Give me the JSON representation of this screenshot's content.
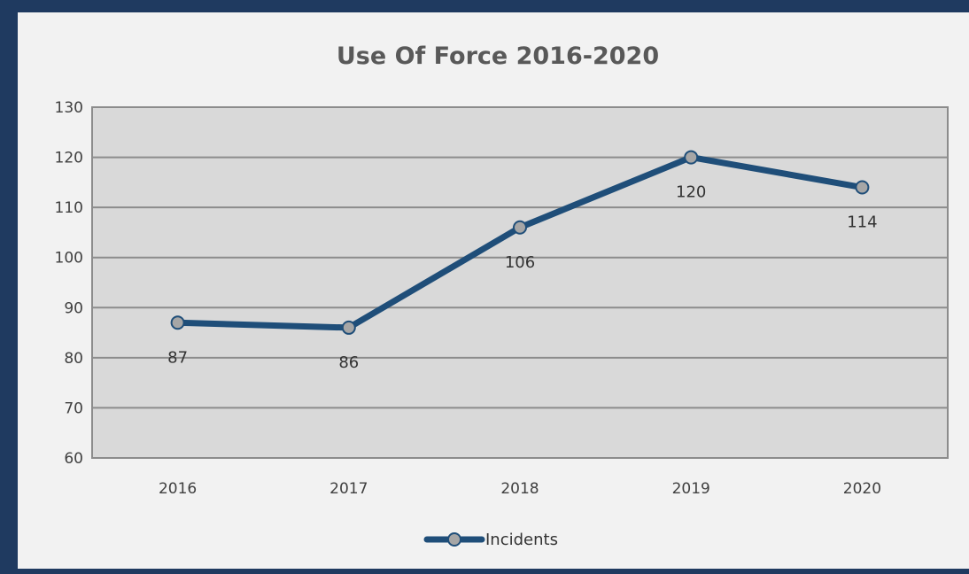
{
  "chart_data": {
    "type": "line",
    "title": "Use Of Force 2016-2020",
    "xlabel": "",
    "ylabel": "",
    "categories": [
      "2016",
      "2017",
      "2018",
      "2019",
      "2020"
    ],
    "series": [
      {
        "name": "Incidents",
        "values": [
          87,
          86,
          106,
          120,
          114
        ]
      }
    ],
    "ylim": [
      60,
      130
    ],
    "yticks": [
      60,
      70,
      80,
      90,
      100,
      110,
      120,
      130
    ],
    "grid": true,
    "legend": "bottom",
    "data_labels": [
      "87",
      "86",
      "106",
      "120",
      "114"
    ]
  },
  "colors": {
    "frame": "#1f3a60",
    "panel": "#f2f2f2",
    "plot_area": "#d9d9d9",
    "gridline": "#8c8c8c",
    "line": "#1f4e79",
    "marker_fill": "#a6a6a6"
  }
}
